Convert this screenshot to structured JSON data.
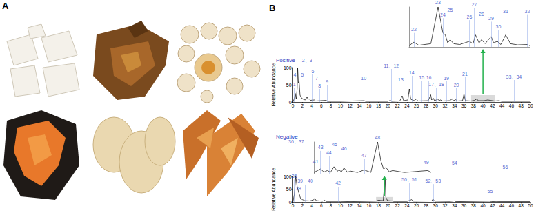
{
  "panel_labels": [
    "A",
    "B"
  ],
  "chart_data": [
    {
      "type": "line",
      "title": "Positive",
      "y_label": "Relative Abundance",
      "color": "#000000",
      "xlim": [
        0,
        50
      ],
      "xticks": [
        0,
        2,
        4,
        6,
        8,
        10,
        12,
        14,
        16,
        18,
        20,
        22,
        24,
        26,
        28,
        30,
        32,
        34,
        36,
        38,
        40,
        42,
        44,
        46,
        48,
        50
      ],
      "ylim": [
        0,
        100
      ],
      "yticks": [
        0,
        50,
        100
      ],
      "x": [
        0,
        0.3,
        0.5,
        0.7,
        0.9,
        1.0,
        1.15,
        1.3,
        1.5,
        1.8,
        2.2,
        2.6,
        3.0,
        3.2,
        3.4,
        3.7,
        4.5,
        4.8,
        7.0,
        7.3,
        10,
        15,
        15.3,
        20,
        20.5,
        20.8,
        22.5,
        23.0,
        23.3,
        24.2,
        24.5,
        24.8,
        25.5,
        26.0,
        26.3,
        28.5,
        29.0,
        29.2,
        29.5,
        29.8,
        30.5,
        30.8,
        31.2,
        31.5,
        33.0,
        33.5,
        33.8,
        34.3,
        34.6,
        35.7,
        36.0,
        36.3,
        37.5,
        38.2,
        38.7,
        39.0,
        40.2,
        41.0,
        41.5,
        42.5,
        43.3,
        44,
        46,
        48,
        50
      ],
      "values": [
        0,
        10,
        25,
        8,
        40,
        100,
        55,
        60,
        20,
        12,
        8,
        6,
        15,
        7,
        10,
        5,
        6,
        3,
        5,
        2,
        2,
        4,
        2,
        2,
        5,
        2,
        3,
        18,
        4,
        6,
        38,
        8,
        4,
        9,
        3,
        4,
        21,
        6,
        12,
        4,
        8,
        4,
        7,
        3,
        4,
        9,
        4,
        7,
        3,
        4,
        23,
        4,
        3,
        5,
        9,
        4,
        4,
        6,
        5,
        3,
        4,
        2,
        2,
        2,
        2
      ],
      "annotations": [
        {
          "text": "1",
          "x": 0.3,
          "y": 42
        },
        {
          "text": "2、3",
          "x": 3.0,
          "y": 112
        },
        {
          "text": "4、5",
          "x": 1.2,
          "y": 70
        },
        {
          "text": "6",
          "x": 4.2,
          "y": 80
        },
        {
          "text": "7",
          "x": 5.0,
          "y": 60
        },
        {
          "text": "8",
          "x": 5.6,
          "y": 38
        },
        {
          "text": "9",
          "x": 7.2,
          "y": 50
        },
        {
          "text": "10",
          "x": 14.9,
          "y": 60
        },
        {
          "text": "11、12",
          "x": 20.7,
          "y": 96
        },
        {
          "text": "13",
          "x": 22.7,
          "y": 56
        },
        {
          "text": "14",
          "x": 25.0,
          "y": 76
        },
        {
          "text": "15",
          "x": 27.1,
          "y": 62
        },
        {
          "text": "16",
          "x": 28.6,
          "y": 62
        },
        {
          "text": "17、18",
          "x": 30.2,
          "y": 42
        },
        {
          "text": "19",
          "x": 32.3,
          "y": 60
        },
        {
          "text": "20",
          "x": 34.4,
          "y": 40
        },
        {
          "text": "21",
          "x": 36.2,
          "y": 72
        },
        {
          "text": "33、34",
          "x": 46.5,
          "y": 64
        }
      ],
      "inset": {
        "type": "line",
        "xlim": [
          37.5,
          42.5
        ],
        "ylim": [
          0,
          100
        ],
        "tick_labels": false,
        "x": [
          37.5,
          37.7,
          37.9,
          38.4,
          38.7,
          38.9,
          39.0,
          39.1,
          39.2,
          39.35,
          39.6,
          40.0,
          40.15,
          40.25,
          40.4,
          40.5,
          40.65,
          40.9,
          41.0,
          41.15,
          41.3,
          41.5,
          41.7,
          42.0,
          42.4,
          42.5
        ],
        "values": [
          3,
          12,
          4,
          8,
          100,
          35,
          30,
          10,
          18,
          8,
          6,
          14,
          8,
          30,
          10,
          18,
          8,
          26,
          10,
          14,
          6,
          30,
          8,
          5,
          6,
          3
        ],
        "annotations": [
          {
            "text": "22",
            "x": 37.7,
            "y": 35
          },
          {
            "text": "23",
            "x": 38.7,
            "y": 103
          },
          {
            "text": "24",
            "x": 38.9,
            "y": 72
          },
          {
            "text": "25",
            "x": 39.2,
            "y": 83
          },
          {
            "text": "26",
            "x": 40.0,
            "y": 67
          },
          {
            "text": "27",
            "x": 40.2,
            "y": 98
          },
          {
            "text": "28",
            "x": 40.5,
            "y": 73
          },
          {
            "text": "29",
            "x": 40.9,
            "y": 63
          },
          {
            "text": "30",
            "x": 41.2,
            "y": 43
          },
          {
            "text": "31",
            "x": 41.5,
            "y": 80
          },
          {
            "text": "32",
            "x": 42.4,
            "y": 80
          }
        ]
      }
    },
    {
      "type": "line",
      "title": "Negative",
      "y_label": "Relative Abundance",
      "color": "#000000",
      "xlim": [
        0,
        50
      ],
      "xticks": [
        0,
        2,
        4,
        6,
        8,
        10,
        12,
        14,
        16,
        18,
        20,
        22,
        24,
        26,
        28,
        30,
        32,
        34,
        36,
        38,
        40,
        42,
        44,
        46,
        48,
        50
      ],
      "ylim": [
        0,
        100
      ],
      "yticks": [
        0,
        50,
        100
      ],
      "x": [
        0,
        0.3,
        0.6,
        0.9,
        1.2,
        1.6,
        2.0,
        2.5,
        3.5,
        4.3,
        4.6,
        4.9,
        6.3,
        6.6,
        7.0,
        10,
        12,
        15,
        17.5,
        17.7,
        18.1,
        18.4,
        19.0,
        19.4,
        19.55,
        19.9,
        20.9,
        21.2,
        24,
        25,
        25.3,
        29.2,
        29.5,
        29.8,
        33,
        34,
        34.3,
        41.5,
        41.8,
        43,
        43.3,
        50
      ],
      "values": [
        0,
        30,
        100,
        60,
        40,
        15,
        10,
        6,
        5,
        8,
        15,
        6,
        4,
        8,
        3,
        3,
        2,
        3,
        4,
        6,
        8,
        7,
        6,
        95,
        20,
        6,
        5,
        3,
        3,
        10,
        4,
        5,
        12,
        4,
        3,
        5,
        2,
        4,
        2,
        3,
        2,
        2
      ],
      "annotations": [
        {
          "text": "35",
          "x": 0.3,
          "y": 88
        },
        {
          "text": "36、37",
          "x": 0.7,
          "y": 222
        },
        {
          "text": "38",
          "x": 1.2,
          "y": 40
        },
        {
          "text": "39、40",
          "x": 2.6,
          "y": 68
        },
        {
          "text": "41",
          "x": 4.8,
          "y": 145
        },
        {
          "text": "42",
          "x": 9.5,
          "y": 60
        },
        {
          "text": "50、51",
          "x": 24.5,
          "y": 75
        },
        {
          "text": "52、53",
          "x": 29.5,
          "y": 70
        },
        {
          "text": "54",
          "x": 34.0,
          "y": 140
        },
        {
          "text": "55",
          "x": 41.5,
          "y": 30
        },
        {
          "text": "56",
          "x": 44.7,
          "y": 122
        }
      ],
      "inset": {
        "type": "line",
        "xlim": [
          17.5,
          21
        ],
        "ylim": [
          0,
          100
        ],
        "tick_labels": false,
        "x": [
          17.5,
          17.7,
          17.8,
          17.9,
          18.0,
          18.1,
          18.2,
          18.25,
          18.32,
          18.4,
          18.5,
          18.6,
          18.8,
          19.0,
          19.2,
          19.4,
          19.5,
          19.58,
          19.65,
          19.75,
          19.85,
          20.2,
          20.9,
          21
        ],
        "values": [
          4,
          15,
          5,
          10,
          5,
          22,
          8,
          12,
          6,
          18,
          5,
          8,
          4,
          12,
          4,
          100,
          40,
          15,
          20,
          6,
          10,
          4,
          10,
          4
        ],
        "annotations": [
          {
            "text": "43",
            "x": 17.7,
            "y": 72
          },
          {
            "text": "44",
            "x": 17.95,
            "y": 55
          },
          {
            "text": "45",
            "x": 18.12,
            "y": 82
          },
          {
            "text": "46",
            "x": 18.4,
            "y": 68
          },
          {
            "text": "47",
            "x": 19.0,
            "y": 47
          },
          {
            "text": "48",
            "x": 19.4,
            "y": 104
          },
          {
            "text": "49",
            "x": 20.85,
            "y": 25
          }
        ]
      }
    }
  ]
}
